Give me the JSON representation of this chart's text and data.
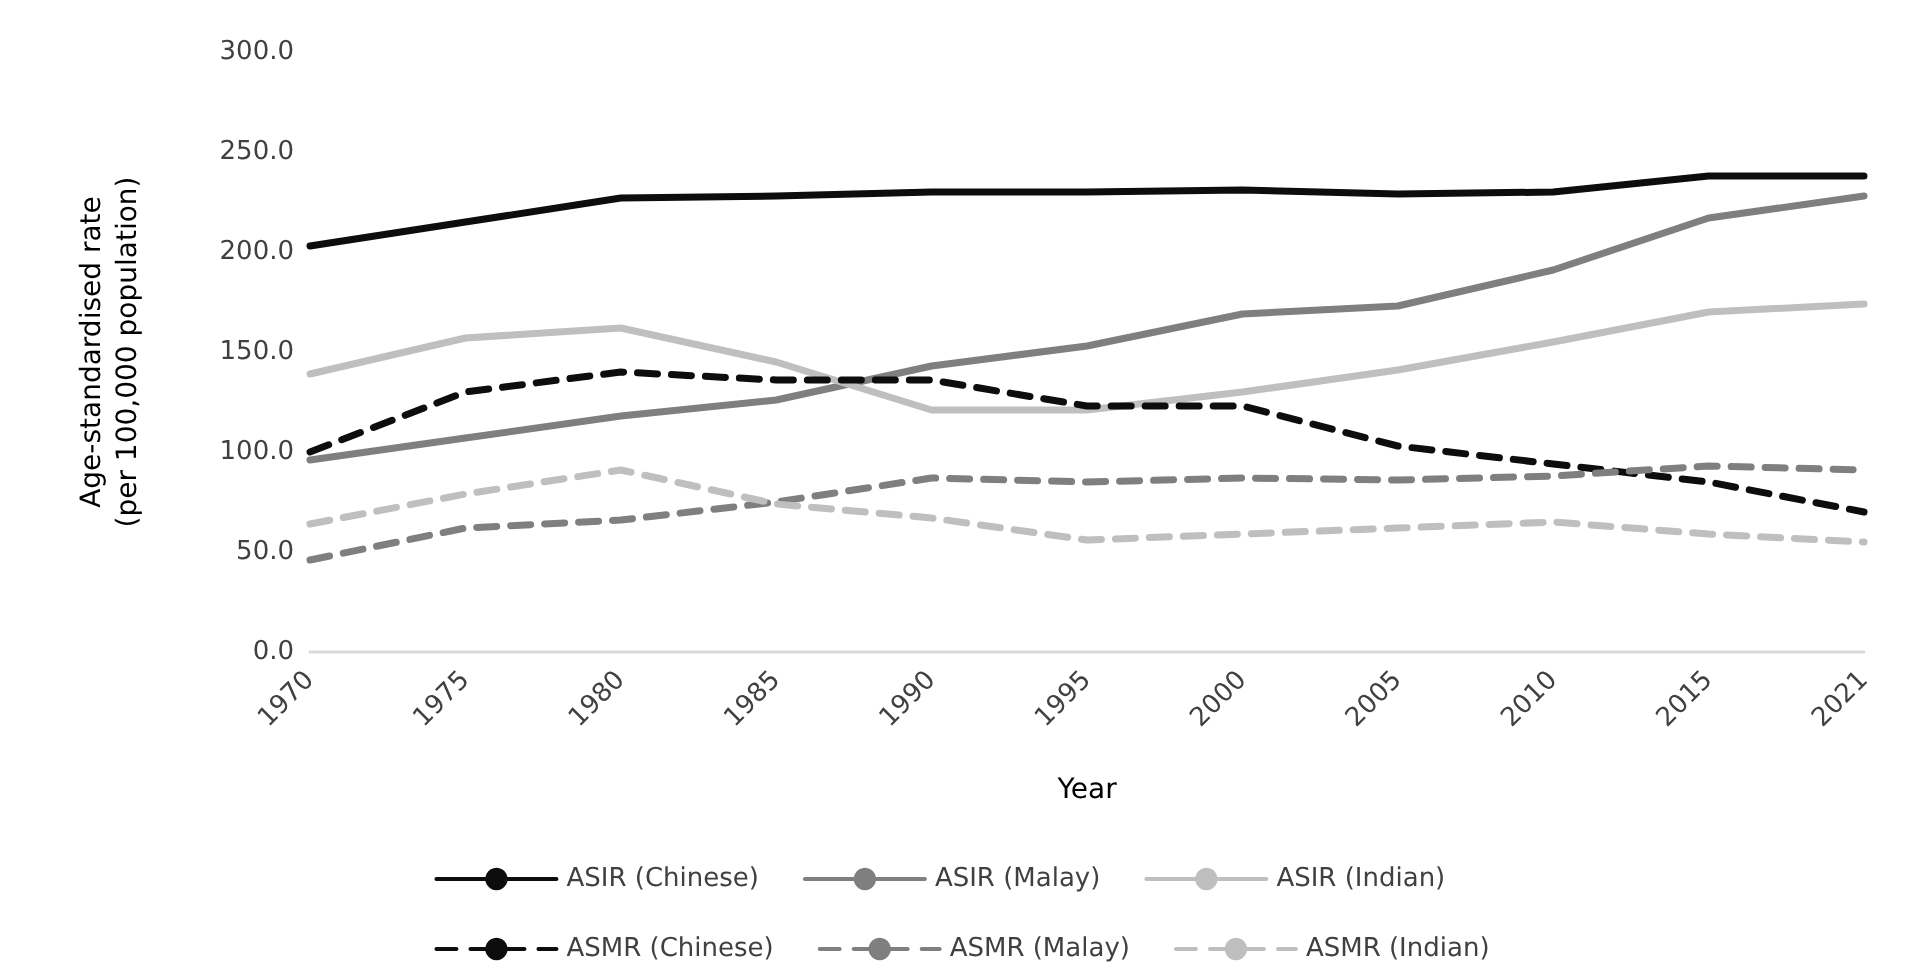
{
  "chart_data": {
    "type": "line",
    "xlabel": "Year",
    "ylabel": "Age-standardised rate\n(per 100,000 population)",
    "categories": [
      "1970",
      "1975",
      "1980",
      "1985",
      "1990",
      "1995",
      "2000",
      "2005",
      "2010",
      "2015",
      "2021"
    ],
    "ylim": [
      0,
      300
    ],
    "yticks": [
      {
        "value": 0,
        "label": "0.0"
      },
      {
        "value": 50,
        "label": "50.0"
      },
      {
        "value": 100,
        "label": "100.0"
      },
      {
        "value": 150,
        "label": "150.0"
      },
      {
        "value": 200,
        "label": "200.0"
      },
      {
        "value": 250,
        "label": "250.0"
      },
      {
        "value": 300,
        "label": "300.0"
      }
    ],
    "grid": false,
    "legend": "bottom",
    "marker": "none",
    "series": [
      {
        "name": "ASIR (Chinese)",
        "color": "#0d0d0d",
        "line_style": "solid",
        "values": [
          203,
          215,
          227,
          228,
          230,
          230,
          231,
          229,
          230,
          238,
          238
        ]
      },
      {
        "name": "ASIR (Malay)",
        "color": "#7f7f7f",
        "line_style": "solid",
        "values": [
          96,
          107,
          118,
          126,
          143,
          153,
          169,
          173,
          191,
          217,
          228
        ]
      },
      {
        "name": "ASIR (Indian)",
        "color": "#bfbfbf",
        "line_style": "solid",
        "values": [
          139,
          157,
          162,
          145,
          121,
          121,
          130,
          141,
          155,
          170,
          174
        ]
      },
      {
        "name": "ASMR (Chinese)",
        "color": "#0d0d0d",
        "line_style": "dashed",
        "values": [
          100,
          130,
          140,
          136,
          136,
          123,
          123,
          103,
          94,
          85,
          70
        ]
      },
      {
        "name": "ASMR (Malay)",
        "color": "#7f7f7f",
        "line_style": "dashed",
        "values": [
          46,
          62,
          66,
          75,
          87,
          85,
          87,
          86,
          88,
          93,
          91
        ]
      },
      {
        "name": "ASMR (Indian)",
        "color": "#bfbfbf",
        "line_style": "dashed",
        "values": [
          64,
          79,
          91,
          74,
          67,
          56,
          59,
          62,
          65,
          59,
          55
        ]
      }
    ]
  }
}
